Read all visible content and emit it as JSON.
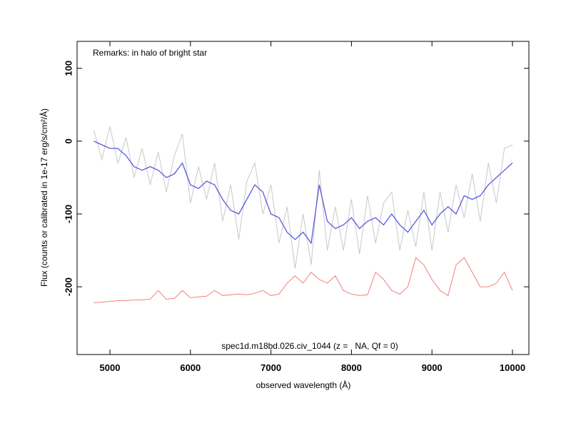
{
  "chart_data": {
    "type": "line",
    "annotations": [
      "Remarks: in halo of bright star",
      "spec1d.m18bd.026.civ_1044 (z =   NA, Qf = 0)"
    ],
    "x_label": "observed wavelength (Å)",
    "y_label": "Flux (counts or calibrated in 1e-17 erg/s/cm²/Å)",
    "x": [
      4800,
      4900,
      5000,
      5100,
      5200,
      5300,
      5400,
      5500,
      5600,
      5700,
      5800,
      5900,
      6000,
      6100,
      6200,
      6300,
      6400,
      6500,
      6600,
      6700,
      6800,
      6900,
      7000,
      7100,
      7200,
      7300,
      7400,
      7500,
      7600,
      7700,
      7800,
      7900,
      8000,
      8100,
      8200,
      8300,
      8400,
      8500,
      8600,
      8700,
      8800,
      8900,
      9000,
      9100,
      9200,
      9300,
      9400,
      9500,
      9600,
      9700,
      9800,
      9900,
      10000
    ],
    "series": [
      {
        "color": "#c8c8c8",
        "values": [
          15,
          -25,
          20,
          -30,
          5,
          -50,
          -10,
          -60,
          -15,
          -70,
          -20,
          10,
          -85,
          -35,
          -80,
          -30,
          -110,
          -60,
          -135,
          -55,
          -30,
          -100,
          -60,
          -140,
          -90,
          -175,
          -100,
          -170,
          -40,
          -150,
          -90,
          -150,
          -80,
          -155,
          -75,
          -140,
          -85,
          -70,
          -150,
          -95,
          -145,
          -70,
          -150,
          -70,
          -125,
          -60,
          -105,
          -45,
          -110,
          -30,
          -85,
          -10,
          -5
        ]
      },
      {
        "color": "#5a5ae0",
        "values": [
          0,
          -5,
          -10,
          -10,
          -20,
          -35,
          -40,
          -35,
          -40,
          -50,
          -45,
          -30,
          -60,
          -65,
          -55,
          -60,
          -80,
          -95,
          -100,
          -80,
          -60,
          -70,
          -100,
          -105,
          -125,
          -135,
          -125,
          -140,
          -60,
          -110,
          -120,
          -115,
          -105,
          -120,
          -110,
          -105,
          -115,
          -100,
          -115,
          -125,
          -110,
          -95,
          -115,
          -100,
          -90,
          -100,
          -75,
          -80,
          -75,
          -60,
          -50,
          -40,
          -30
        ]
      },
      {
        "color": "#f08080",
        "values": [
          -222,
          -221,
          -220,
          -219,
          -219,
          -218,
          -218,
          -217,
          -205,
          -217,
          -216,
          -205,
          -215,
          -214,
          -213,
          -205,
          -212,
          -211,
          -210,
          -211,
          -209,
          -205,
          -212,
          -210,
          -195,
          -185,
          -195,
          -180,
          -190,
          -195,
          -185,
          -205,
          -210,
          -212,
          -211,
          -180,
          -190,
          -205,
          -210,
          -200,
          -160,
          -170,
          -190,
          -205,
          -212,
          -170,
          -160,
          -180,
          -200,
          -200,
          -195,
          -180,
          -205
        ]
      }
    ],
    "xlim": [
      4592,
      10204
    ],
    "ylim": [
      -293,
      137
    ],
    "xticks": [
      5000,
      6000,
      7000,
      8000,
      9000,
      10000
    ],
    "yticks": [
      100,
      0,
      -100,
      -200
    ]
  }
}
